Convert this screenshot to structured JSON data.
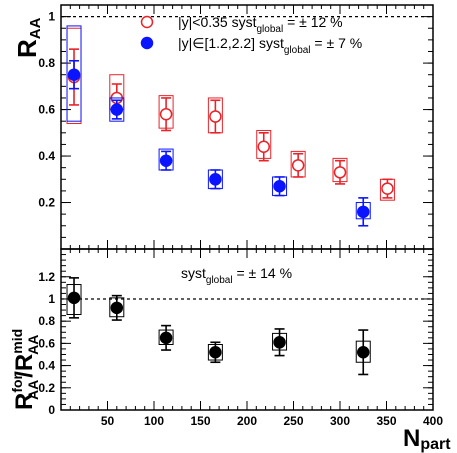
{
  "chart_data": [
    {
      "type": "scatter",
      "panel": "top",
      "ylabel_main": "R",
      "ylabel_sub": "AA",
      "xlabel_main": "N",
      "xlabel_sub": "part",
      "xlim": [
        0,
        400
      ],
      "ylim": [
        0,
        1.05
      ],
      "x_ticks": [
        50,
        100,
        150,
        200,
        250,
        300,
        350,
        400
      ],
      "x_tick_labels": [
        "50",
        "100",
        "150",
        "200",
        "250",
        "300",
        "350",
        "400"
      ],
      "y_ticks": [
        0.2,
        0.4,
        0.6,
        0.8,
        1.0
      ],
      "y_tick_labels": [
        "0.2",
        "0.4",
        "0.6",
        "0.8",
        "1"
      ],
      "reference_line": 1.0,
      "legend": [
        {
          "marker": "open-circle",
          "color": "#e8242a",
          "label_pre": "|y|<0.35   syst",
          "label_sub": "global",
          "label_post": " = ± 12 %"
        },
        {
          "marker": "filled-circle",
          "color": "#0a14ff",
          "label_pre": "|y|∈[1.2,2.2]   syst",
          "label_sub": "global",
          "label_post": " = ± 7 %"
        }
      ],
      "series": [
        {
          "name": "|y|<0.35",
          "marker": "open-circle",
          "color": "#e8242a",
          "points": [
            {
              "x": 14,
              "y": 0.74,
              "stat": 0.12,
              "syst_box": [
                0.54,
                0.95
              ]
            },
            {
              "x": 60,
              "y": 0.65,
              "stat": 0.06,
              "syst_box": [
                0.6,
                0.75
              ]
            },
            {
              "x": 113,
              "y": 0.58,
              "stat": 0.07,
              "syst_box": [
                0.52,
                0.66
              ]
            },
            {
              "x": 166,
              "y": 0.57,
              "stat": 0.07,
              "syst_box": [
                0.5,
                0.65
              ]
            },
            {
              "x": 218,
              "y": 0.44,
              "stat": 0.06,
              "syst_box": [
                0.39,
                0.51
              ]
            },
            {
              "x": 255,
              "y": 0.36,
              "stat": 0.05,
              "syst_box": [
                0.31,
                0.42
              ]
            },
            {
              "x": 300,
              "y": 0.33,
              "stat": 0.05,
              "syst_box": [
                0.29,
                0.39
              ]
            },
            {
              "x": 351,
              "y": 0.26,
              "stat": 0.04,
              "syst_box": [
                0.21,
                0.3
              ]
            }
          ]
        },
        {
          "name": "|y|∈[1.2,2.2]",
          "marker": "filled-circle",
          "color": "#0a14ff",
          "points": [
            {
              "x": 14,
              "y": 0.75,
              "stat": 0.06,
              "syst_box": [
                0.55,
                0.96
              ]
            },
            {
              "x": 60,
              "y": 0.6,
              "stat": 0.04,
              "syst_box": [
                0.55,
                0.65
              ]
            },
            {
              "x": 113,
              "y": 0.38,
              "stat": 0.04,
              "syst_box": [
                0.34,
                0.43
              ]
            },
            {
              "x": 166,
              "y": 0.3,
              "stat": 0.04,
              "syst_box": [
                0.26,
                0.34
              ]
            },
            {
              "x": 235,
              "y": 0.27,
              "stat": 0.04,
              "syst_box": [
                0.23,
                0.31
              ]
            },
            {
              "x": 325,
              "y": 0.16,
              "stat": 0.06,
              "syst_box": [
                0.13,
                0.2
              ]
            }
          ]
        }
      ]
    },
    {
      "type": "scatter",
      "panel": "bottom",
      "ylabel": "R_AA^for / R_AA^mid",
      "ylabel_parts": {
        "r1": "R",
        "sup1": "for",
        "sub1": "AA",
        "slash": "/",
        "r2": "R",
        "sup2": "mid",
        "sub2": "AA"
      },
      "xlim": [
        0,
        400
      ],
      "ylim": [
        0,
        1.45
      ],
      "y_ticks": [
        0,
        0.2,
        0.4,
        0.6,
        0.8,
        1.0,
        1.2
      ],
      "y_tick_labels": [
        "0",
        "0.2",
        "0.4",
        "0.6",
        "0.8",
        "1",
        "1.2"
      ],
      "reference_line": 1.0,
      "annotation": {
        "pre": "syst",
        "sub": "global",
        "post": " = ± 14 %"
      },
      "series": [
        {
          "name": "",
          "marker": "filled-circle",
          "color": "#000000",
          "points": [
            {
              "x": 14,
              "y": 1.01,
              "stat": 0.18,
              "syst_box": [
                0.86,
                1.13
              ]
            },
            {
              "x": 60,
              "y": 0.92,
              "stat": 0.11,
              "syst_box": [
                0.84,
                1.01
              ]
            },
            {
              "x": 113,
              "y": 0.65,
              "stat": 0.11,
              "syst_box": [
                0.59,
                0.72
              ]
            },
            {
              "x": 166,
              "y": 0.52,
              "stat": 0.09,
              "syst_box": [
                0.45,
                0.59
              ]
            },
            {
              "x": 235,
              "y": 0.61,
              "stat": 0.12,
              "syst_box": [
                0.54,
                0.69
              ]
            },
            {
              "x": 325,
              "y": 0.52,
              "stat": 0.2,
              "syst_box": [
                0.43,
                0.62
              ]
            }
          ]
        }
      ]
    }
  ]
}
